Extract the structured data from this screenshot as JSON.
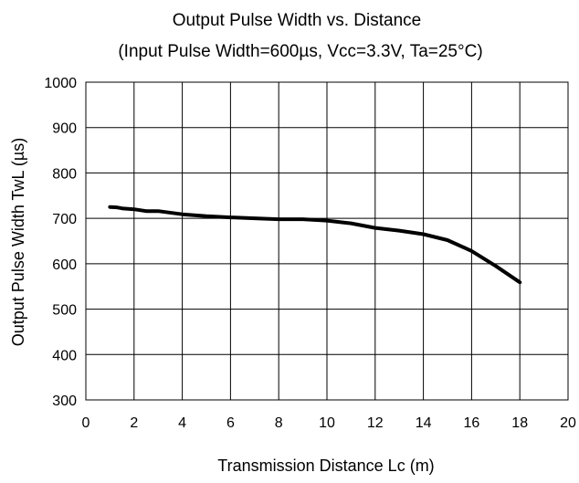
{
  "chart_data": {
    "type": "line",
    "title": "Output Pulse Width vs. Distance",
    "subtitle": "(Input Pulse Width=600µs, Vcc=3.3V, Ta=25°C)",
    "xlabel": "Transmission Distance Lc (m)",
    "ylabel": "Output Pulse Width TwL (µs)",
    "xlim": [
      0,
      20
    ],
    "ylim": [
      300,
      1000
    ],
    "xticks": [
      0,
      2,
      4,
      6,
      8,
      10,
      12,
      14,
      16,
      18,
      20
    ],
    "yticks": [
      300,
      400,
      500,
      600,
      700,
      800,
      900,
      1000
    ],
    "grid": true,
    "legend": "none",
    "series": [
      {
        "color": "#000000",
        "x": [
          1,
          1.3,
          1.5,
          2,
          2.5,
          3,
          4,
          5,
          6,
          7,
          8,
          9,
          10,
          11,
          12,
          13,
          14,
          15,
          16,
          17,
          18
        ],
        "y": [
          725,
          724,
          722,
          720,
          716,
          716,
          709,
          705,
          702,
          700,
          698,
          698,
          695,
          689,
          679,
          673,
          665,
          652,
          628,
          595,
          559
        ]
      }
    ]
  }
}
